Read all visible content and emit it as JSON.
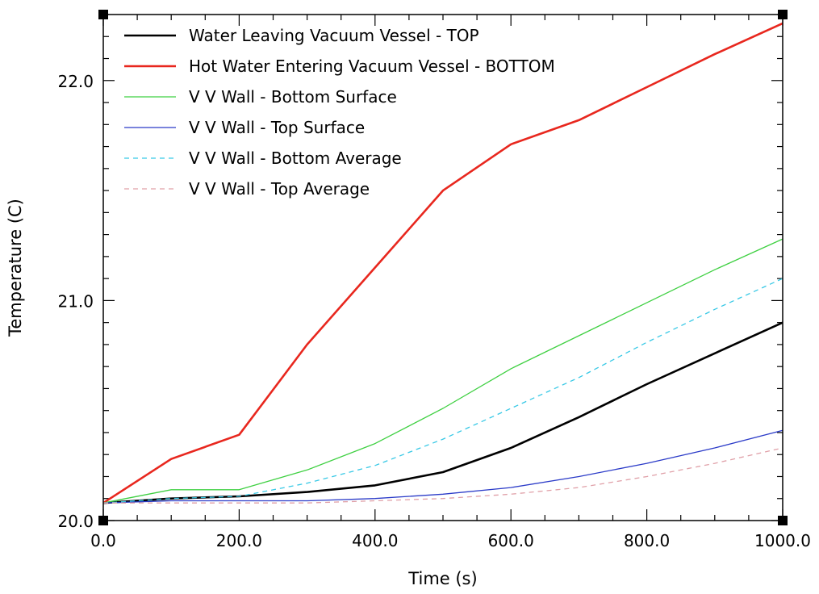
{
  "chart_data": {
    "type": "line",
    "xlabel": "Time (s)",
    "ylabel": "Temperature (C)",
    "xlim": [
      0,
      1000
    ],
    "ylim": [
      20.0,
      22.3
    ],
    "x_ticks": [
      0,
      200,
      400,
      600,
      800,
      1000
    ],
    "x_tick_labels": [
      "0.0",
      "200.0",
      "400.0",
      "600.0",
      "800.0",
      "1000.0"
    ],
    "y_ticks": [
      20.0,
      21.0,
      22.0
    ],
    "y_tick_labels": [
      "20.0",
      "21.0",
      "22.0"
    ],
    "grid": false,
    "legend_position": "top-left",
    "x": [
      0,
      100,
      200,
      300,
      400,
      500,
      600,
      700,
      800,
      900,
      1000
    ],
    "series": [
      {
        "name": "Water Leaving Vacuum Vessel - TOP",
        "color": "#000000",
        "style": "solid",
        "width": 2.6,
        "values": [
          20.08,
          20.1,
          20.11,
          20.13,
          20.16,
          20.22,
          20.33,
          20.47,
          20.62,
          20.76,
          20.9
        ]
      },
      {
        "name": "Hot Water Entering Vacuum Vessel - BOTTOM",
        "color": "#e8271e",
        "style": "solid",
        "width": 2.6,
        "values": [
          20.08,
          20.28,
          20.39,
          20.8,
          21.15,
          21.5,
          21.71,
          21.82,
          21.97,
          22.12,
          22.26
        ]
      },
      {
        "name": "V V Wall - Bottom Surface",
        "color": "#3fd042",
        "style": "solid",
        "width": 1.3,
        "values": [
          20.08,
          20.14,
          20.14,
          20.23,
          20.35,
          20.51,
          20.69,
          20.84,
          20.99,
          21.14,
          21.28
        ]
      },
      {
        "name": "V V Wall - Top Surface",
        "color": "#2b3bc8",
        "style": "solid",
        "width": 1.3,
        "values": [
          20.08,
          20.09,
          20.09,
          20.09,
          20.1,
          20.12,
          20.15,
          20.2,
          20.26,
          20.33,
          20.41
        ]
      },
      {
        "name": "V V Wall - Bottom Average",
        "color": "#38c9e6",
        "style": "dashed",
        "width": 1.3,
        "values": [
          20.08,
          20.1,
          20.11,
          20.17,
          20.25,
          20.37,
          20.51,
          20.65,
          20.81,
          20.96,
          21.1
        ]
      },
      {
        "name": "V V Wall - Top Average",
        "color": "#e0a0a8",
        "style": "dashed",
        "width": 1.3,
        "values": [
          20.08,
          20.08,
          20.08,
          20.08,
          20.09,
          20.1,
          20.12,
          20.15,
          20.2,
          20.26,
          20.33
        ]
      }
    ]
  }
}
